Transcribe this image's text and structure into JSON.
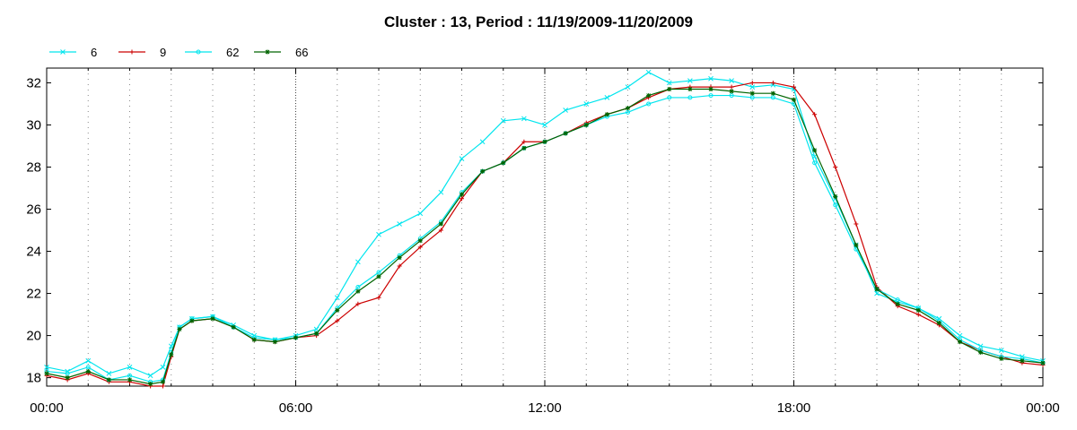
{
  "chart_data": {
    "type": "line",
    "title": "Cluster : 13, Period : 11/19/2009-11/20/2009",
    "xlabel": "",
    "ylabel": "",
    "x_ticks": [
      "00:00",
      "06:00",
      "12:00",
      "18:00",
      "00:00"
    ],
    "x_range_hours": [
      0,
      24
    ],
    "y_ticks": [
      "18",
      "20",
      "22",
      "24",
      "26",
      "28",
      "30",
      "32"
    ],
    "ylim": [
      17.6,
      32.7
    ],
    "grid": "vertical dotted",
    "legend_placement": "top-left",
    "x_hours": [
      0,
      0.5,
      1,
      1.5,
      2,
      2.5,
      2.8,
      3,
      3.2,
      3.5,
      4,
      4.5,
      5,
      5.5,
      6,
      6.5,
      7,
      7.5,
      8,
      8.5,
      9,
      9.5,
      10,
      10.5,
      11,
      11.5,
      12,
      12.5,
      13,
      13.5,
      14,
      14.5,
      15,
      15.5,
      16,
      16.5,
      17,
      17.5,
      18,
      18.5,
      19,
      19.5,
      20,
      20.5,
      21,
      21.5,
      22,
      22.5,
      23,
      23.5,
      24
    ],
    "series": [
      {
        "name": "6",
        "color": "#00e5ee",
        "marker": "x",
        "values": [
          18.5,
          18.3,
          18.8,
          18.2,
          18.5,
          18.1,
          18.5,
          19.5,
          20.4,
          20.8,
          20.9,
          20.5,
          20.0,
          19.8,
          20.0,
          20.3,
          21.8,
          23.5,
          24.8,
          25.3,
          25.8,
          26.8,
          28.4,
          29.2,
          30.2,
          30.3,
          30.0,
          30.7,
          31.0,
          31.3,
          31.8,
          32.5,
          32.0,
          32.1,
          32.2,
          32.1,
          31.8,
          31.9,
          31.7,
          28.5,
          26.5,
          24.3,
          22.0,
          21.6,
          21.3,
          20.8,
          20.0,
          19.5,
          19.3,
          19.0,
          18.8
        ]
      },
      {
        "name": "9",
        "color": "#cc0000",
        "marker": "+",
        "values": [
          18.1,
          17.9,
          18.2,
          17.8,
          17.8,
          17.6,
          17.6,
          19.0,
          20.3,
          20.7,
          20.8,
          20.4,
          19.8,
          19.7,
          19.9,
          20.0,
          20.7,
          21.5,
          21.8,
          23.3,
          24.2,
          25.0,
          26.5,
          27.8,
          28.2,
          29.2,
          29.2,
          29.6,
          30.1,
          30.5,
          30.8,
          31.3,
          31.7,
          31.8,
          31.8,
          31.8,
          32.0,
          32.0,
          31.8,
          30.5,
          28.0,
          25.3,
          22.3,
          21.4,
          21.0,
          20.5,
          19.7,
          19.3,
          19.0,
          18.7,
          18.6
        ]
      },
      {
        "name": "62",
        "color": "#00e5ee",
        "marker": "circle",
        "values": [
          18.3,
          18.2,
          18.5,
          17.9,
          18.1,
          17.8,
          17.9,
          19.2,
          20.4,
          20.8,
          20.9,
          20.4,
          19.9,
          19.8,
          19.9,
          20.1,
          21.3,
          22.3,
          23.0,
          23.8,
          24.6,
          25.4,
          26.8,
          27.8,
          28.2,
          28.9,
          29.2,
          29.6,
          30.0,
          30.4,
          30.6,
          31.0,
          31.3,
          31.3,
          31.4,
          31.4,
          31.3,
          31.3,
          31.0,
          28.2,
          26.2,
          24.1,
          22.2,
          21.7,
          21.3,
          20.7,
          19.8,
          19.3,
          19.0,
          18.9,
          18.7
        ]
      },
      {
        "name": "66",
        "color": "#006400",
        "marker": "asterisk",
        "values": [
          18.2,
          18.0,
          18.3,
          17.9,
          17.9,
          17.7,
          17.8,
          19.1,
          20.3,
          20.7,
          20.8,
          20.4,
          19.8,
          19.7,
          19.9,
          20.1,
          21.2,
          22.1,
          22.8,
          23.7,
          24.5,
          25.3,
          26.7,
          27.8,
          28.2,
          28.9,
          29.2,
          29.6,
          30.0,
          30.5,
          30.8,
          31.4,
          31.7,
          31.7,
          31.7,
          31.6,
          31.5,
          31.5,
          31.2,
          28.8,
          26.6,
          24.3,
          22.2,
          21.5,
          21.2,
          20.6,
          19.7,
          19.2,
          18.9,
          18.8,
          18.7
        ]
      }
    ]
  }
}
